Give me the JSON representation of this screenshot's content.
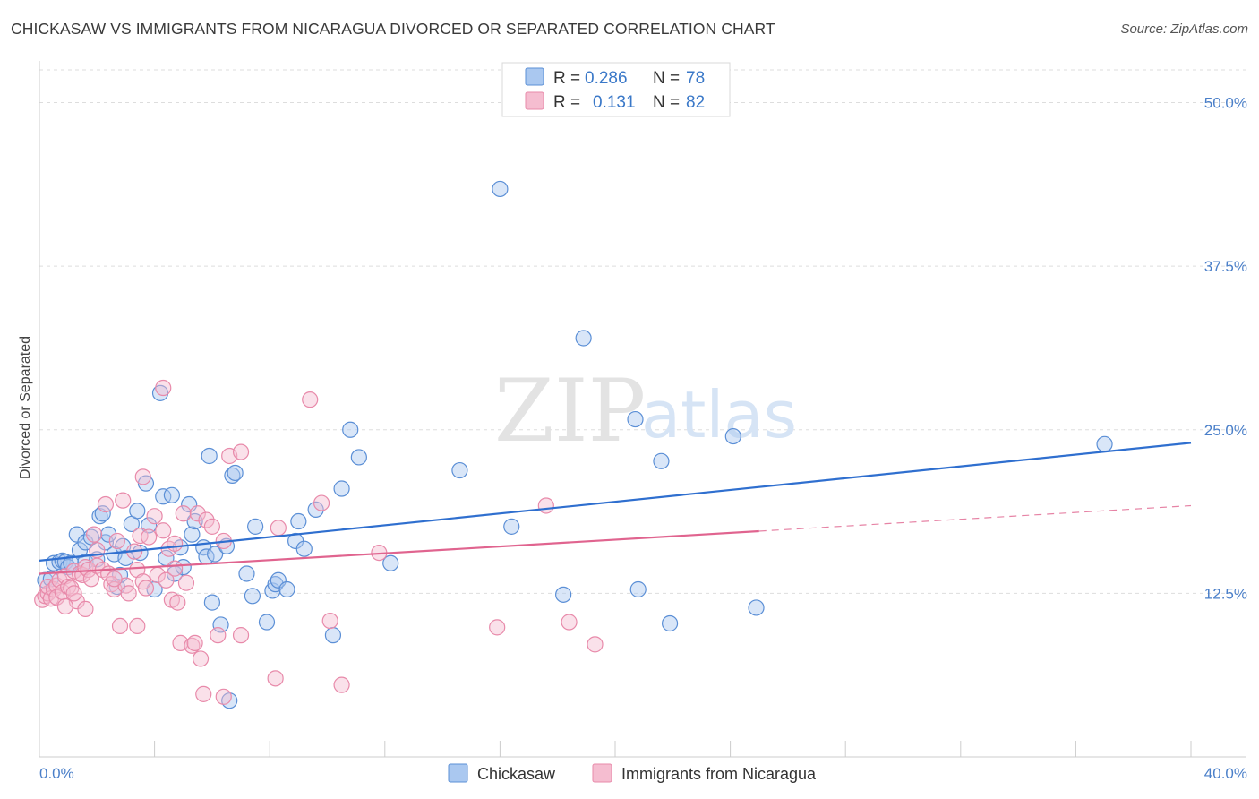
{
  "title": "CHICKASAW VS IMMIGRANTS FROM NICARAGUA DIVORCED OR SEPARATED CORRELATION CHART",
  "source": "Source: ZipAtlas.com",
  "watermark": {
    "part1": "ZIP",
    "part2": "atlas"
  },
  "colors": {
    "blue_fill": "#aac8f0",
    "blue_stroke": "#5b8fd6",
    "blue_line": "#2f6fcf",
    "pink_fill": "#f5bdd0",
    "pink_stroke": "#e88aaa",
    "pink_line": "#e0648f",
    "grid": "#dddddd",
    "axis_text": "#4a7fc9"
  },
  "legend": {
    "rows": [
      {
        "r_label": "R =",
        "r_value": "0.286",
        "n_label": "N =",
        "n_value": "78"
      },
      {
        "r_label": "R =",
        "r_value": "0.131",
        "n_label": "N =",
        "n_value": "82"
      }
    ]
  },
  "chart_data": {
    "type": "scatter",
    "title": "CHICKASAW VS IMMIGRANTS FROM NICARAGUA DIVORCED OR SEPARATED CORRELATION CHART",
    "xlabel": "",
    "ylabel": "Divorced or Separated",
    "xlim": [
      0,
      40
    ],
    "ylim": [
      0,
      52.5
    ],
    "x_tick_labels": [
      "0.0%",
      "40.0%"
    ],
    "y_ticks": [
      12.5,
      25.0,
      37.5,
      50.0
    ],
    "y_tick_labels": [
      "12.5%",
      "25.0%",
      "37.5%",
      "50.0%"
    ],
    "grid": true,
    "legend_position": "top-center",
    "series": [
      {
        "name": "Chickasaw",
        "r": 0.286,
        "n": 78,
        "trend": {
          "x0": 0,
          "y0": 15.0,
          "x1": 40,
          "y1": 24.0,
          "dashed_from": null
        },
        "points": [
          [
            0.2,
            13.5
          ],
          [
            0.4,
            13.6
          ],
          [
            0.5,
            14.8
          ],
          [
            0.7,
            14.9
          ],
          [
            0.8,
            15.0
          ],
          [
            0.9,
            14.9
          ],
          [
            1.0,
            14.5
          ],
          [
            1.1,
            14.8
          ],
          [
            1.3,
            17.0
          ],
          [
            1.4,
            15.8
          ],
          [
            1.6,
            16.4
          ],
          [
            1.6,
            14.9
          ],
          [
            1.8,
            16.8
          ],
          [
            2.0,
            15.1
          ],
          [
            2.1,
            18.4
          ],
          [
            2.2,
            18.6
          ],
          [
            2.3,
            16.4
          ],
          [
            2.4,
            17.0
          ],
          [
            2.6,
            15.5
          ],
          [
            2.7,
            13.0
          ],
          [
            2.8,
            13.9
          ],
          [
            2.9,
            16.1
          ],
          [
            3.0,
            15.2
          ],
          [
            3.2,
            17.8
          ],
          [
            3.4,
            18.8
          ],
          [
            3.5,
            15.6
          ],
          [
            3.7,
            20.9
          ],
          [
            3.8,
            17.7
          ],
          [
            4.0,
            12.8
          ],
          [
            4.2,
            27.8
          ],
          [
            4.3,
            19.9
          ],
          [
            4.4,
            15.2
          ],
          [
            4.6,
            20.0
          ],
          [
            4.7,
            14.0
          ],
          [
            4.9,
            16.0
          ],
          [
            5.0,
            14.5
          ],
          [
            5.2,
            19.3
          ],
          [
            5.3,
            17.0
          ],
          [
            5.4,
            18.0
          ],
          [
            5.7,
            16.0
          ],
          [
            5.8,
            15.3
          ],
          [
            6.0,
            11.8
          ],
          [
            6.1,
            15.5
          ],
          [
            6.3,
            10.1
          ],
          [
            6.5,
            16.1
          ],
          [
            6.7,
            21.5
          ],
          [
            6.8,
            21.7
          ],
          [
            7.2,
            14.0
          ],
          [
            7.4,
            12.3
          ],
          [
            7.5,
            17.6
          ],
          [
            7.9,
            10.3
          ],
          [
            8.1,
            12.7
          ],
          [
            8.2,
            13.2
          ],
          [
            8.3,
            13.5
          ],
          [
            8.6,
            12.8
          ],
          [
            8.9,
            16.5
          ],
          [
            9.0,
            18.0
          ],
          [
            9.2,
            15.9
          ],
          [
            9.6,
            18.9
          ],
          [
            10.2,
            9.3
          ],
          [
            10.5,
            20.5
          ],
          [
            10.8,
            25.0
          ],
          [
            11.1,
            22.9
          ],
          [
            12.2,
            14.8
          ],
          [
            14.6,
            21.9
          ],
          [
            16.0,
            43.4
          ],
          [
            16.4,
            17.6
          ],
          [
            18.2,
            12.4
          ],
          [
            18.9,
            32.0
          ],
          [
            20.7,
            25.8
          ],
          [
            20.8,
            12.8
          ],
          [
            21.6,
            22.6
          ],
          [
            21.9,
            10.2
          ],
          [
            24.1,
            24.5
          ],
          [
            24.9,
            11.4
          ],
          [
            37.0,
            23.9
          ],
          [
            6.6,
            4.3
          ],
          [
            5.9,
            23.0
          ]
        ]
      },
      {
        "name": "Immigrants from Nicaragua",
        "r": 0.131,
        "n": 82,
        "trend": {
          "x0": 0,
          "y0": 14.0,
          "x1": 40,
          "y1": 19.2,
          "dashed_from": 25
        },
        "points": [
          [
            0.1,
            12.0
          ],
          [
            0.2,
            12.3
          ],
          [
            0.3,
            12.5
          ],
          [
            0.3,
            13.0
          ],
          [
            0.4,
            12.1
          ],
          [
            0.5,
            12.8
          ],
          [
            0.6,
            13.1
          ],
          [
            0.6,
            12.2
          ],
          [
            0.7,
            13.5
          ],
          [
            0.8,
            12.6
          ],
          [
            0.9,
            13.8
          ],
          [
            1.0,
            13.0
          ],
          [
            1.1,
            12.9
          ],
          [
            1.2,
            14.2
          ],
          [
            1.3,
            11.9
          ],
          [
            1.4,
            14.0
          ],
          [
            1.5,
            13.9
          ],
          [
            1.6,
            14.5
          ],
          [
            1.7,
            14.3
          ],
          [
            1.8,
            13.6
          ],
          [
            1.9,
            17.0
          ],
          [
            2.0,
            15.8
          ],
          [
            2.0,
            14.6
          ],
          [
            2.2,
            14.3
          ],
          [
            2.4,
            14.0
          ],
          [
            2.5,
            13.2
          ],
          [
            2.6,
            12.8
          ],
          [
            2.7,
            16.5
          ],
          [
            2.8,
            10.0
          ],
          [
            2.9,
            19.6
          ],
          [
            3.0,
            13.1
          ],
          [
            3.1,
            12.5
          ],
          [
            3.3,
            15.7
          ],
          [
            3.4,
            14.3
          ],
          [
            3.5,
            16.9
          ],
          [
            3.6,
            13.4
          ],
          [
            3.7,
            12.9
          ],
          [
            3.8,
            16.8
          ],
          [
            4.0,
            18.4
          ],
          [
            4.1,
            13.9
          ],
          [
            4.3,
            17.3
          ],
          [
            4.4,
            13.5
          ],
          [
            4.5,
            15.9
          ],
          [
            4.6,
            12.0
          ],
          [
            4.7,
            16.3
          ],
          [
            4.8,
            11.8
          ],
          [
            4.9,
            8.7
          ],
          [
            5.0,
            18.6
          ],
          [
            5.1,
            13.3
          ],
          [
            5.3,
            8.5
          ],
          [
            5.4,
            8.7
          ],
          [
            5.5,
            18.6
          ],
          [
            5.6,
            7.5
          ],
          [
            5.8,
            18.1
          ],
          [
            6.0,
            17.6
          ],
          [
            6.2,
            9.3
          ],
          [
            6.4,
            16.5
          ],
          [
            6.6,
            23.0
          ],
          [
            7.0,
            23.3
          ],
          [
            8.3,
            17.5
          ],
          [
            9.4,
            27.3
          ],
          [
            9.8,
            19.4
          ],
          [
            10.1,
            10.4
          ],
          [
            10.5,
            5.5
          ],
          [
            11.8,
            15.6
          ],
          [
            15.9,
            9.9
          ],
          [
            17.6,
            19.2
          ],
          [
            18.4,
            10.3
          ],
          [
            19.3,
            8.6
          ],
          [
            4.3,
            28.2
          ],
          [
            3.6,
            21.4
          ],
          [
            2.3,
            19.3
          ],
          [
            7.0,
            9.3
          ],
          [
            8.2,
            6.0
          ],
          [
            6.4,
            4.6
          ],
          [
            5.7,
            4.8
          ],
          [
            1.6,
            11.3
          ],
          [
            0.9,
            11.5
          ],
          [
            3.4,
            10.0
          ],
          [
            2.6,
            13.6
          ],
          [
            1.2,
            12.5
          ],
          [
            4.7,
            14.4
          ]
        ]
      }
    ]
  },
  "bottom_legend": [
    "Chickasaw",
    "Immigrants from Nicaragua"
  ]
}
